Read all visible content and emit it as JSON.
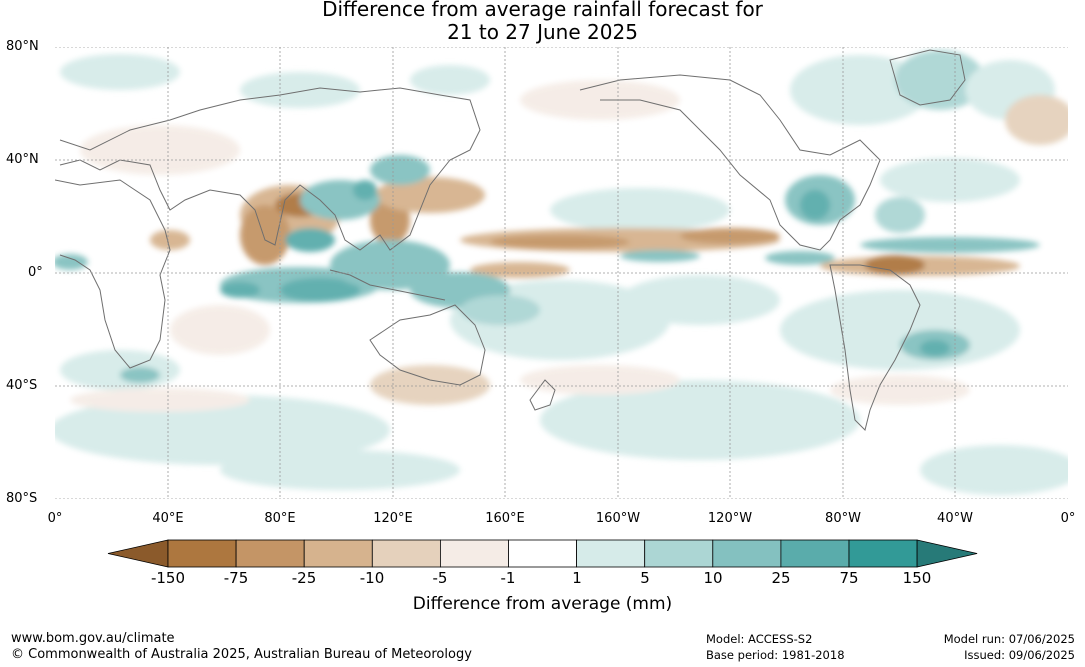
{
  "title": {
    "line1": "Difference from average rainfall forecast for",
    "line2": "21 to 27 June 2025"
  },
  "map": {
    "lat_labels": [
      "80°N",
      "40°N",
      "0°",
      "40°S",
      "80°S"
    ],
    "lon_labels": [
      "0°",
      "40°E",
      "80°E",
      "120°E",
      "160°E",
      "160°W",
      "120°W",
      "80°W",
      "40°W",
      "0°"
    ]
  },
  "legend": {
    "title": "Difference from average (mm)",
    "tick_labels": [
      "-150",
      "-75",
      "-25",
      "-10",
      "-5",
      "-1",
      "1",
      "5",
      "10",
      "25",
      "75",
      "150"
    ],
    "colors": [
      "#8b5a2b",
      "#ad773f",
      "#c49566",
      "#d6b38e",
      "#e5d1bc",
      "#f5ece6",
      "#ffffff",
      "#d6ebe9",
      "#acd6d4",
      "#84c1c0",
      "#5aacab",
      "#329a97",
      "#277a78"
    ]
  },
  "footer": {
    "url": "www.bom.gov.au/climate",
    "copyright": "© Commonwealth of Australia 2025, Australian Bureau of Meteorology",
    "model": "Model: ACCESS-S2",
    "base_period": "Base period: 1981-2018",
    "model_run": "Model run: 07/06/2025",
    "issued": "Issued: 09/06/2025"
  }
}
